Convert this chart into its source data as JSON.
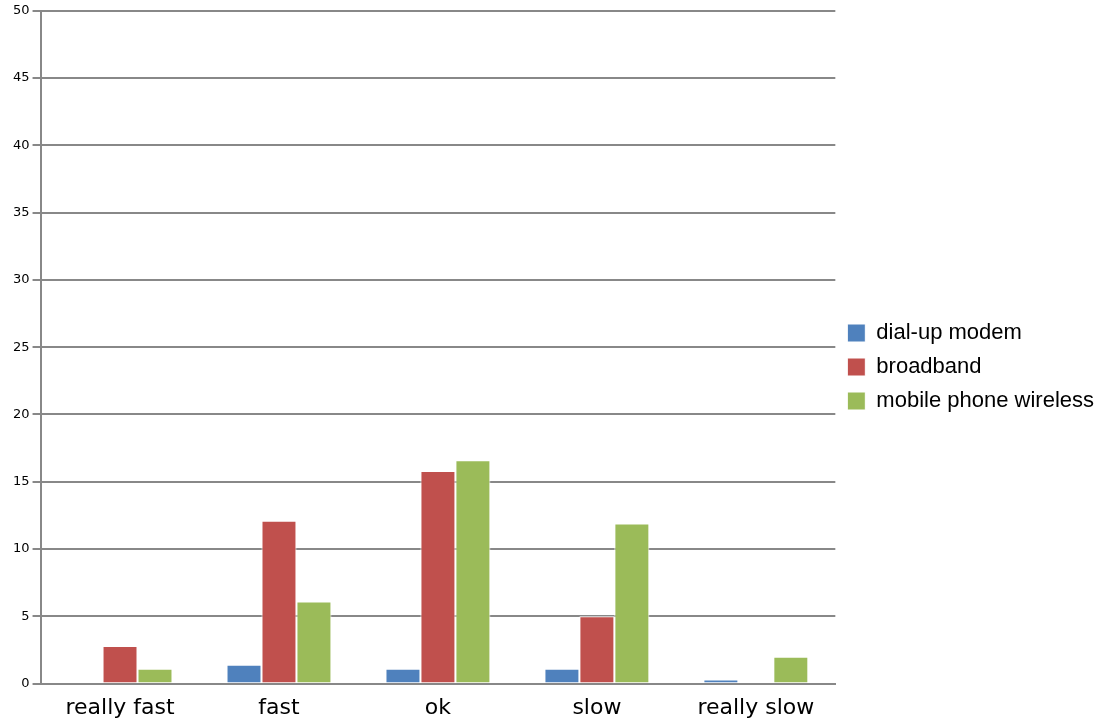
{
  "chart_data": {
    "type": "bar",
    "categories": [
      "really fast",
      "fast",
      "ok",
      "slow",
      "really slow"
    ],
    "series": [
      {
        "name": "dial-up modem",
        "color": "#4f81bd",
        "values": [
          0,
          1.4,
          1.1,
          1.1,
          0.3
        ]
      },
      {
        "name": "broadband",
        "color": "#c0504d",
        "values": [
          2.8,
          12.1,
          15.8,
          5,
          0
        ]
      },
      {
        "name": "mobile phone wireless",
        "color": "#9bbb59",
        "values": [
          1.1,
          6.1,
          16.6,
          11.9,
          2
        ]
      }
    ],
    "ylim": [
      0,
      50
    ],
    "yticks": [
      0,
      5,
      10,
      15,
      20,
      25,
      30,
      35,
      40,
      45,
      50
    ],
    "grid": "y",
    "legend": "right"
  }
}
